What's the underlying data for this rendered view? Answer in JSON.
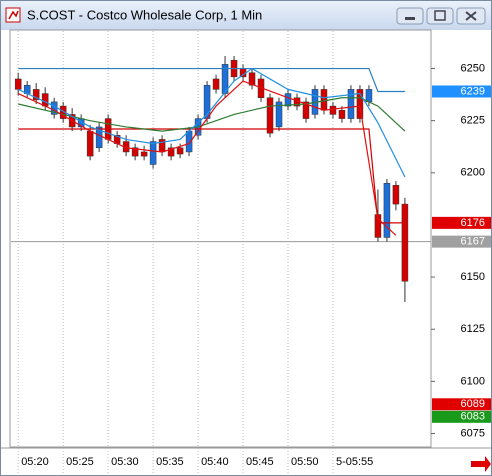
{
  "chart_data": {
    "type": "candlestick",
    "title": "S.COST - Costco Wholesale Corp, 1 Min",
    "xlim": [
      -0.8,
      45.9
    ],
    "ylim": [
      6069,
      6268
    ],
    "xticks": [
      {
        "value": 0,
        "label": "05:20"
      },
      {
        "value": 5,
        "label": "05:25"
      },
      {
        "value": 10,
        "label": "05:30"
      },
      {
        "value": 15,
        "label": "05:35"
      },
      {
        "value": 20,
        "label": "05:40"
      },
      {
        "value": 25,
        "label": "05:45"
      },
      {
        "value": 30,
        "label": "05:50"
      },
      {
        "value": 35,
        "label": "5-05:55"
      }
    ],
    "yticks": [
      6075,
      6100,
      6125,
      6150,
      6200,
      6225,
      6250
    ],
    "up_color": "#1f6fd8",
    "down_color": "#d40000",
    "candles": {
      "open": [
        6245,
        6238,
        6240,
        6238,
        6228,
        6232,
        6228,
        6222,
        6220,
        6212,
        6226,
        6218,
        6215,
        6212,
        6210,
        6204,
        6216,
        6212,
        6212,
        6210,
        6218,
        6226,
        6245,
        6238,
        6254,
        6250,
        6248,
        6245,
        6236,
        6222,
        6232,
        6236,
        6234,
        6228,
        6240,
        6232,
        6230,
        6226,
        6240,
        6234,
        6180,
        6169,
        6194,
        6185
      ],
      "high": [
        6248,
        6244,
        6243,
        6241,
        6236,
        6234,
        6231,
        6228,
        6223,
        6224,
        6228,
        6220,
        6218,
        6214,
        6213,
        6217,
        6218,
        6214,
        6214,
        6222,
        6228,
        6244,
        6247,
        6256,
        6256,
        6252,
        6250,
        6247,
        6238,
        6236,
        6240,
        6238,
        6236,
        6242,
        6242,
        6234,
        6232,
        6242,
        6242,
        6242,
        6192,
        6197,
        6196,
        6188
      ],
      "low": [
        6237,
        6236,
        6233,
        6230,
        6226,
        6224,
        6220,
        6220,
        6206,
        6210,
        6214,
        6212,
        6208,
        6206,
        6206,
        6202,
        6208,
        6206,
        6207,
        6208,
        6216,
        6224,
        6238,
        6236,
        6244,
        6244,
        6240,
        6234,
        6217,
        6220,
        6230,
        6230,
        6224,
        6226,
        6228,
        6226,
        6224,
        6224,
        6224,
        6232,
        6167,
        6167,
        6182,
        6138
      ],
      "close": [
        6240,
        6242,
        6235,
        6232,
        6234,
        6226,
        6222,
        6226,
        6208,
        6222,
        6216,
        6214,
        6210,
        6208,
        6208,
        6215,
        6210,
        6208,
        6209,
        6220,
        6226,
        6242,
        6240,
        6252,
        6246,
        6246,
        6242,
        6236,
        6219,
        6234,
        6238,
        6232,
        6226,
        6240,
        6230,
        6228,
        6226,
        6240,
        6226,
        6240,
        6169,
        6195,
        6185,
        6148
      ]
    },
    "lines": [
      {
        "color": "#2a7fc0",
        "x": [
          0,
          39,
          40,
          43
        ],
        "values": [
          6250,
          6250,
          6239,
          6239
        ]
      },
      {
        "color": "#d40000",
        "x": [
          0,
          39,
          40,
          43
        ],
        "values": [
          6221,
          6221,
          6176,
          6176
        ]
      },
      {
        "color": "#2e7d32",
        "x": [
          0,
          4,
          8,
          12,
          16,
          20,
          24,
          28,
          32,
          36,
          38,
          40,
          43
        ],
        "values": [
          6233,
          6229,
          6225,
          6222,
          6220,
          6222,
          6228,
          6232,
          6233,
          6236,
          6236,
          6232,
          6220
        ]
      },
      {
        "color": "#1f8fe0",
        "x": [
          0,
          4,
          8,
          12,
          15,
          18,
          21,
          24,
          26,
          30,
          34,
          38,
          40,
          43
        ],
        "values": [
          6240,
          6232,
          6222,
          6216,
          6214,
          6216,
          6228,
          6244,
          6250,
          6240,
          6236,
          6238,
          6224,
          6198
        ]
      },
      {
        "color": "#e01010",
        "x": [
          0,
          4,
          8,
          12,
          16,
          19,
          22,
          25,
          30,
          34,
          38,
          40,
          42
        ],
        "values": [
          6238,
          6230,
          6220,
          6212,
          6210,
          6214,
          6232,
          6244,
          6236,
          6230,
          6232,
          6178,
          6170
        ]
      }
    ],
    "hline": {
      "value": 6167,
      "color": "#999999"
    },
    "price_markers": [
      {
        "value": 6239,
        "color": "#1e90ff"
      },
      {
        "value": 6176,
        "color": "#e00000"
      },
      {
        "value": 6167,
        "color": "#a0a0a0"
      },
      {
        "value": 6083,
        "color": "#1a9a1a"
      },
      {
        "value": 6089,
        "color": "#e00000"
      }
    ]
  }
}
